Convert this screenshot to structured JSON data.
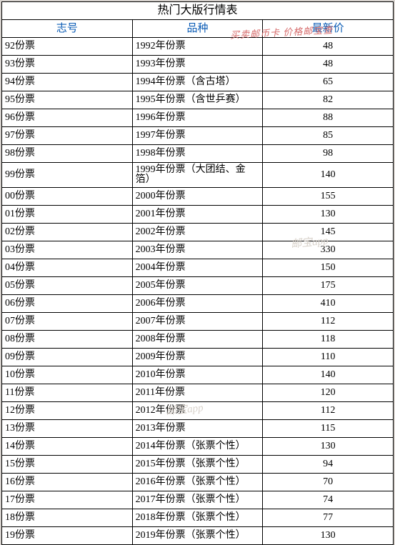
{
  "title": "热门大版行情表",
  "columns": [
    "志号",
    "品种",
    "最新价"
  ],
  "watermark": "邮宝app",
  "redStamp": "买卖邮币卡 价格邮宝查",
  "rows": [
    {
      "code": "92份票",
      "name": "1992年份票",
      "price": "48"
    },
    {
      "code": "93份票",
      "name": "1993年份票",
      "price": "48"
    },
    {
      "code": "94份票",
      "name": "1994年份票（含古塔）",
      "price": "65"
    },
    {
      "code": "95份票",
      "name": "1995年份票（含世乒赛）",
      "price": "82"
    },
    {
      "code": "96份票",
      "name": "1996年份票",
      "price": "88"
    },
    {
      "code": "97份票",
      "name": "1997年份票",
      "price": "85"
    },
    {
      "code": "98份票",
      "name": "1998年份票",
      "price": "98"
    },
    {
      "code": "99份票",
      "name": "1999年份票（大团结、金箔）",
      "price": "140"
    },
    {
      "code": "00份票",
      "name": "2000年份票",
      "price": "155"
    },
    {
      "code": "01份票",
      "name": "2001年份票",
      "price": "130"
    },
    {
      "code": "02份票",
      "name": "2002年份票",
      "price": "145"
    },
    {
      "code": "03份票",
      "name": "2003年份票",
      "price": "330"
    },
    {
      "code": "04份票",
      "name": "2004年份票",
      "price": "150"
    },
    {
      "code": "05份票",
      "name": "2005年份票",
      "price": "175"
    },
    {
      "code": "06份票",
      "name": "2006年份票",
      "price": "410"
    },
    {
      "code": "07份票",
      "name": "2007年份票",
      "price": "112"
    },
    {
      "code": "08份票",
      "name": "2008年份票",
      "price": "118"
    },
    {
      "code": "09份票",
      "name": "2009年份票",
      "price": "110"
    },
    {
      "code": "10份票",
      "name": "2010年份票",
      "price": "140"
    },
    {
      "code": "11份票",
      "name": "2011年份票",
      "price": "120"
    },
    {
      "code": "12份票",
      "name": "2012年份票",
      "price": "112"
    },
    {
      "code": "13份票",
      "name": "2013年份票",
      "price": "115"
    },
    {
      "code": "14份票",
      "name": "2014年份票（张票个性）",
      "price": "130"
    },
    {
      "code": "15份票",
      "name": "2015年份票（张票个性）",
      "price": "94"
    },
    {
      "code": "16份票",
      "name": "2016年份票（张票个性）",
      "price": "70"
    },
    {
      "code": "17份票",
      "name": "2017年份票（张票个性）",
      "price": "74"
    },
    {
      "code": "18份票",
      "name": "2018年份票（张票个性）",
      "price": "77"
    },
    {
      "code": "19份票",
      "name": "2019年份票（张票个性）",
      "price": "130"
    }
  ]
}
